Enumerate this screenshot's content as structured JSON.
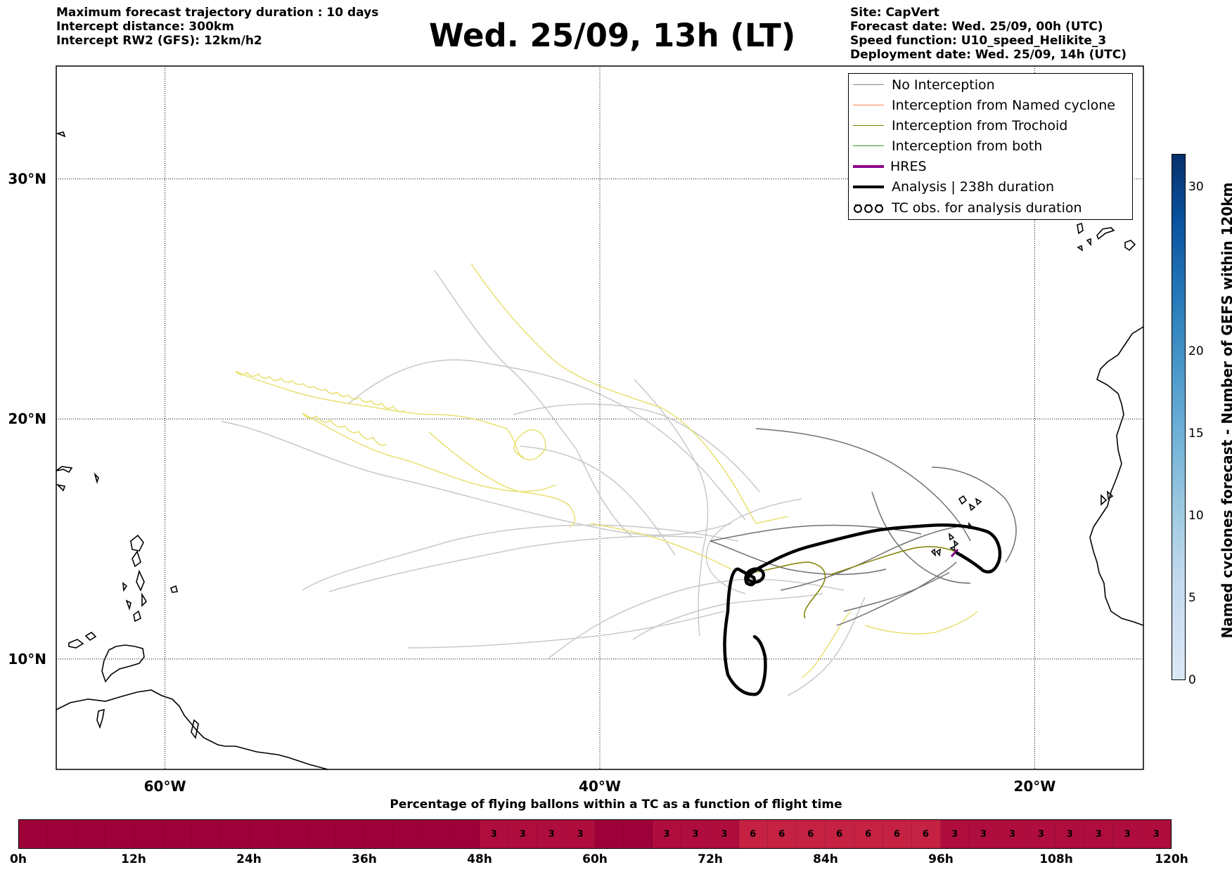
{
  "header": {
    "left_lines": [
      "Maximum forecast trajectory duration : 10 days",
      "Intercept distance: 300km",
      "Intercept RW2 (GFS):  12km/h2"
    ],
    "title": "Wed. 25/09, 13h (LT)",
    "right_lines": [
      "Site: CapVert",
      "Forecast date: Wed. 25/09, 00h (UTC)",
      "Speed function: U10_speed_Helikite_3",
      "Deployment date: Wed. 25/09, 14h (UTC)"
    ]
  },
  "map": {
    "lat_labels": [
      "30°N",
      "20°N",
      "10°N"
    ],
    "lon_labels": [
      "60°W",
      "40°W",
      "20°W"
    ],
    "lat_values": [
      30,
      20,
      10
    ],
    "lon_values": [
      -60,
      -40,
      -20
    ],
    "extent": {
      "lon_min": -65,
      "lon_max": -15,
      "lat_min": 5.4,
      "lat_max": 34.7
    }
  },
  "legend": {
    "items": [
      {
        "label": "No Interception",
        "color": "#808080",
        "icon": "thin-line"
      },
      {
        "label": "Interception from Named cyclone",
        "color": "#ff7f50",
        "icon": "thin-line"
      },
      {
        "label": "Interception from Trochoid",
        "color": "#808000",
        "icon": "thin-line"
      },
      {
        "label": "Interception from both",
        "color": "#2ca02c",
        "icon": "thin-line"
      },
      {
        "label": "HRES",
        "color": "#8b008b",
        "icon": "thick-line"
      },
      {
        "label": "Analysis | 238h duration",
        "color": "#000000",
        "icon": "thick-line"
      },
      {
        "label": "TC obs. for analysis duration",
        "color": "#000000",
        "icon": "tc-symbol"
      }
    ]
  },
  "colorbar": {
    "label": "Named cyclones forecast - Number of GEFS within 120km",
    "ticks": [
      "0",
      "5",
      "10",
      "15",
      "20",
      "30"
    ],
    "tick_values": [
      0,
      5,
      10,
      15,
      20,
      30
    ],
    "min": 0,
    "max": 32
  },
  "flight_time_bar": {
    "title": "Percentage of flying ballons within a TC as a function of flight time",
    "time_labels": [
      "0h",
      "12h",
      "24h",
      "36h",
      "48h",
      "60h",
      "72h",
      "84h",
      "96h",
      "108h",
      "120h"
    ],
    "cells": [
      "",
      "",
      "",
      "",
      "",
      "",
      "",
      "",
      "",
      "",
      "",
      "",
      "",
      "",
      "",
      "",
      "3",
      "3",
      "3",
      "3",
      "",
      "",
      "3",
      "3",
      "3",
      "6",
      "6",
      "6",
      "6",
      "6",
      "6",
      "6",
      "3",
      "3",
      "3",
      "3",
      "3",
      "3",
      "3",
      "3"
    ]
  }
}
